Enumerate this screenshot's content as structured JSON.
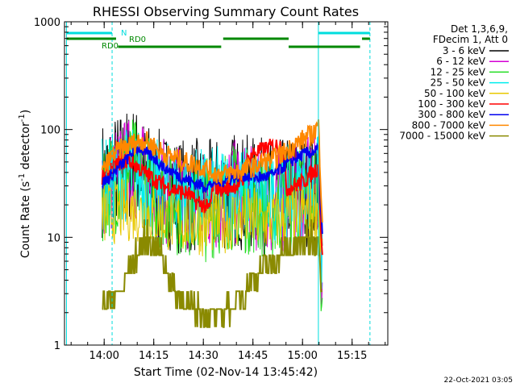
{
  "chart_data": {
    "type": "line",
    "title": "RHESSI Observing Summary Count Rates",
    "xlabel": "Start Time (02-Nov-14 13:45:42)",
    "ylabel": "Count Rate (s⁻¹ detector⁻¹)",
    "ylabel_parts": {
      "main": "Count Rate (s",
      "exp1": "-1",
      "mid": " detector",
      "exp2": "-1",
      "end": ")"
    },
    "yscale": "log",
    "ylim": [
      1,
      1000
    ],
    "xlim": [
      13.8,
      15.43
    ],
    "x_ticks": [
      {
        "label": "14:00",
        "value": 14.0
      },
      {
        "label": "14:15",
        "value": 14.25
      },
      {
        "label": "14:30",
        "value": 14.5
      },
      {
        "label": "14:45",
        "value": 14.75
      },
      {
        "label": "15:00",
        "value": 15.0
      },
      {
        "label": "15:15",
        "value": 15.25
      }
    ],
    "y_ticks": [
      {
        "label": "1",
        "value": 1
      },
      {
        "label": "10",
        "value": 10
      },
      {
        "label": "100",
        "value": 100
      },
      {
        "label": "1000",
        "value": 1000
      }
    ],
    "legend_header": [
      "Det 1,3,6,9,",
      "FDecim 1, Att 0"
    ],
    "legend_position": "right",
    "series": [
      {
        "name": "3 - 6 keV",
        "color": "#000000",
        "points": [
          [
            13.99,
            35
          ],
          [
            14.05,
            40
          ],
          [
            14.1,
            45
          ],
          [
            14.15,
            50
          ],
          [
            14.2,
            38
          ],
          [
            14.25,
            30
          ],
          [
            14.3,
            28
          ],
          [
            14.35,
            26
          ],
          [
            14.4,
            24
          ],
          [
            14.45,
            25
          ],
          [
            14.5,
            22
          ],
          [
            14.55,
            24
          ],
          [
            14.6,
            26
          ],
          [
            14.65,
            28
          ],
          [
            14.7,
            26
          ],
          [
            14.75,
            25
          ],
          [
            14.8,
            24
          ],
          [
            14.85,
            22
          ],
          [
            14.9,
            24
          ],
          [
            14.95,
            26
          ],
          [
            15.0,
            28
          ],
          [
            15.05,
            30
          ],
          [
            15.08,
            32
          ],
          [
            15.1,
            5
          ]
        ]
      },
      {
        "name": "6 - 12 keV",
        "color": "#d400d4",
        "points": [
          [
            13.99,
            30
          ],
          [
            14.05,
            35
          ],
          [
            14.1,
            40
          ],
          [
            14.15,
            45
          ],
          [
            14.2,
            35
          ],
          [
            14.25,
            28
          ],
          [
            14.3,
            26
          ],
          [
            14.35,
            24
          ],
          [
            14.4,
            22
          ],
          [
            14.45,
            22
          ],
          [
            14.5,
            20
          ],
          [
            14.55,
            22
          ],
          [
            14.6,
            24
          ],
          [
            14.65,
            26
          ],
          [
            14.7,
            24
          ],
          [
            14.75,
            23
          ],
          [
            14.8,
            22
          ],
          [
            14.85,
            20
          ],
          [
            14.9,
            22
          ],
          [
            14.95,
            24
          ],
          [
            15.0,
            26
          ],
          [
            15.05,
            28
          ],
          [
            15.08,
            30
          ],
          [
            15.1,
            4
          ]
        ]
      },
      {
        "name": "12 - 25 keV",
        "color": "#22dd22",
        "points": [
          [
            13.99,
            28
          ],
          [
            14.05,
            33
          ],
          [
            14.1,
            38
          ],
          [
            14.15,
            42
          ],
          [
            14.2,
            33
          ],
          [
            14.25,
            26
          ],
          [
            14.3,
            24
          ],
          [
            14.35,
            22
          ],
          [
            14.4,
            20
          ],
          [
            14.45,
            20
          ],
          [
            14.5,
            18
          ],
          [
            14.55,
            20
          ],
          [
            14.6,
            22
          ],
          [
            14.65,
            24
          ],
          [
            14.7,
            22
          ],
          [
            14.75,
            21
          ],
          [
            14.8,
            20
          ],
          [
            14.85,
            18
          ],
          [
            14.9,
            20
          ],
          [
            14.95,
            22
          ],
          [
            15.0,
            24
          ],
          [
            15.05,
            26
          ],
          [
            15.08,
            28
          ],
          [
            15.1,
            3
          ]
        ]
      },
      {
        "name": "25 - 50 keV",
        "color": "#00eeee",
        "points": [
          [
            13.99,
            30
          ],
          [
            14.05,
            34
          ],
          [
            14.1,
            38
          ],
          [
            14.15,
            40
          ],
          [
            14.2,
            34
          ],
          [
            14.25,
            30
          ],
          [
            14.3,
            28
          ],
          [
            14.35,
            27
          ],
          [
            14.4,
            25
          ],
          [
            14.45,
            25
          ],
          [
            14.5,
            24
          ],
          [
            14.55,
            25
          ],
          [
            14.6,
            26
          ],
          [
            14.65,
            27
          ],
          [
            14.7,
            26
          ],
          [
            14.75,
            26
          ],
          [
            14.8,
            25
          ],
          [
            14.85,
            24
          ],
          [
            14.9,
            25
          ],
          [
            14.95,
            26
          ],
          [
            15.0,
            28
          ],
          [
            15.05,
            30
          ],
          [
            15.08,
            32
          ],
          [
            15.1,
            6
          ]
        ]
      },
      {
        "name": "50 - 100 keV",
        "color": "#e8c800",
        "points": [
          [
            13.99,
            16
          ],
          [
            14.05,
            17
          ],
          [
            14.1,
            18
          ],
          [
            14.15,
            18
          ],
          [
            14.2,
            17
          ],
          [
            14.25,
            16
          ],
          [
            14.3,
            15
          ],
          [
            14.35,
            14
          ],
          [
            14.4,
            14
          ],
          [
            14.45,
            14
          ],
          [
            14.5,
            13
          ],
          [
            14.55,
            14
          ],
          [
            14.6,
            14
          ],
          [
            14.65,
            15
          ],
          [
            14.7,
            15
          ],
          [
            14.75,
            15
          ],
          [
            14.8,
            14
          ],
          [
            14.85,
            14
          ],
          [
            14.9,
            15
          ],
          [
            14.95,
            16
          ],
          [
            15.0,
            17
          ],
          [
            15.05,
            18
          ],
          [
            15.08,
            20
          ],
          [
            15.1,
            6
          ]
        ]
      },
      {
        "name": "100 - 300 keV",
        "color": "#ff0000",
        "points": [
          [
            13.99,
            35
          ],
          [
            14.02,
            40
          ],
          [
            14.05,
            45
          ],
          [
            14.08,
            50
          ],
          [
            14.12,
            52
          ],
          [
            14.15,
            48
          ],
          [
            14.2,
            40
          ],
          [
            14.25,
            35
          ],
          [
            14.3,
            30
          ],
          [
            14.35,
            28
          ],
          [
            14.4,
            26
          ],
          [
            14.43,
            25
          ],
          [
            14.45,
            22
          ],
          [
            14.5,
            20
          ],
          [
            14.53,
            18
          ],
          [
            14.55,
            30
          ],
          [
            14.6,
            28
          ],
          [
            14.65,
            30
          ],
          [
            14.7,
            32
          ],
          [
            14.72,
            50
          ],
          [
            14.75,
            60
          ],
          [
            14.8,
            65
          ],
          [
            14.85,
            70
          ],
          [
            14.9,
            72
          ],
          [
            14.92,
            28
          ],
          [
            14.95,
            30
          ],
          [
            15.0,
            32
          ],
          [
            15.05,
            40
          ],
          [
            15.08,
            45
          ],
          [
            15.1,
            6
          ]
        ]
      },
      {
        "name": "300 - 800 keV",
        "color": "#0000ee",
        "points": [
          [
            13.99,
            32
          ],
          [
            14.02,
            35
          ],
          [
            14.05,
            40
          ],
          [
            14.08,
            45
          ],
          [
            14.12,
            55
          ],
          [
            14.15,
            65
          ],
          [
            14.18,
            68
          ],
          [
            14.2,
            62
          ],
          [
            14.25,
            55
          ],
          [
            14.3,
            45
          ],
          [
            14.35,
            40
          ],
          [
            14.4,
            35
          ],
          [
            14.45,
            32
          ],
          [
            14.5,
            30
          ],
          [
            14.53,
            30
          ],
          [
            14.55,
            32
          ],
          [
            14.6,
            34
          ],
          [
            14.65,
            36
          ],
          [
            14.7,
            38
          ],
          [
            14.75,
            36
          ],
          [
            14.8,
            36
          ],
          [
            14.85,
            38
          ],
          [
            14.9,
            45
          ],
          [
            14.95,
            52
          ],
          [
            15.0,
            58
          ],
          [
            15.05,
            62
          ],
          [
            15.08,
            65
          ],
          [
            15.1,
            10
          ]
        ]
      },
      {
        "name": "800 - 7000 keV",
        "color": "#ff8800",
        "points": [
          [
            13.99,
            40
          ],
          [
            14.02,
            50
          ],
          [
            14.05,
            60
          ],
          [
            14.08,
            65
          ],
          [
            14.12,
            70
          ],
          [
            14.15,
            75
          ],
          [
            14.2,
            80
          ],
          [
            14.25,
            70
          ],
          [
            14.3,
            60
          ],
          [
            14.35,
            55
          ],
          [
            14.4,
            50
          ],
          [
            14.45,
            48
          ],
          [
            14.5,
            45
          ],
          [
            14.55,
            40
          ],
          [
            14.6,
            38
          ],
          [
            14.65,
            40
          ],
          [
            14.7,
            42
          ],
          [
            14.75,
            45
          ],
          [
            14.8,
            50
          ],
          [
            14.85,
            52
          ],
          [
            14.9,
            60
          ],
          [
            14.95,
            70
          ],
          [
            15.0,
            80
          ],
          [
            15.05,
            90
          ],
          [
            15.08,
            110
          ],
          [
            15.1,
            15
          ]
        ]
      },
      {
        "name": "7000 - 15000 keV",
        "color": "#8a8a00",
        "points": [
          [
            13.99,
            2.5
          ],
          [
            14.05,
            2.8
          ],
          [
            14.1,
            3.5
          ],
          [
            14.15,
            6
          ],
          [
            14.18,
            8
          ],
          [
            14.2,
            9.5
          ],
          [
            14.25,
            9
          ],
          [
            14.3,
            6
          ],
          [
            14.33,
            4
          ],
          [
            14.36,
            3
          ],
          [
            14.4,
            2.4
          ],
          [
            14.45,
            2.2
          ],
          [
            14.5,
            2
          ],
          [
            14.55,
            2
          ],
          [
            14.6,
            2
          ],
          [
            14.65,
            2.2
          ],
          [
            14.7,
            3
          ],
          [
            14.75,
            4
          ],
          [
            14.8,
            5
          ],
          [
            14.85,
            6
          ],
          [
            14.9,
            7
          ],
          [
            14.95,
            8
          ],
          [
            15.0,
            9
          ],
          [
            15.05,
            10
          ],
          [
            15.08,
            10
          ],
          [
            15.1,
            3
          ]
        ]
      }
    ],
    "cyan_vertical_lines": [
      13.81,
      14.04,
      15.08,
      15.34
    ],
    "state_bars": {
      "cyan": [
        [
          13.81,
          14.04
        ],
        [
          15.08,
          15.34
        ]
      ],
      "green_upper": [
        [
          13.81,
          14.06
        ],
        [
          14.6,
          14.93
        ],
        [
          15.3,
          15.34
        ]
      ],
      "green_lower": [
        [
          14.07,
          14.59
        ],
        [
          14.93,
          15.29
        ]
      ]
    },
    "annotations": [
      {
        "text": "N",
        "color": "#00dddd"
      },
      {
        "text": "RD0",
        "color": "#008800"
      },
      {
        "text": "RD0",
        "color": "#008800"
      }
    ],
    "footer_date": "22-Oct-2021 03:05",
    "grid": false
  }
}
